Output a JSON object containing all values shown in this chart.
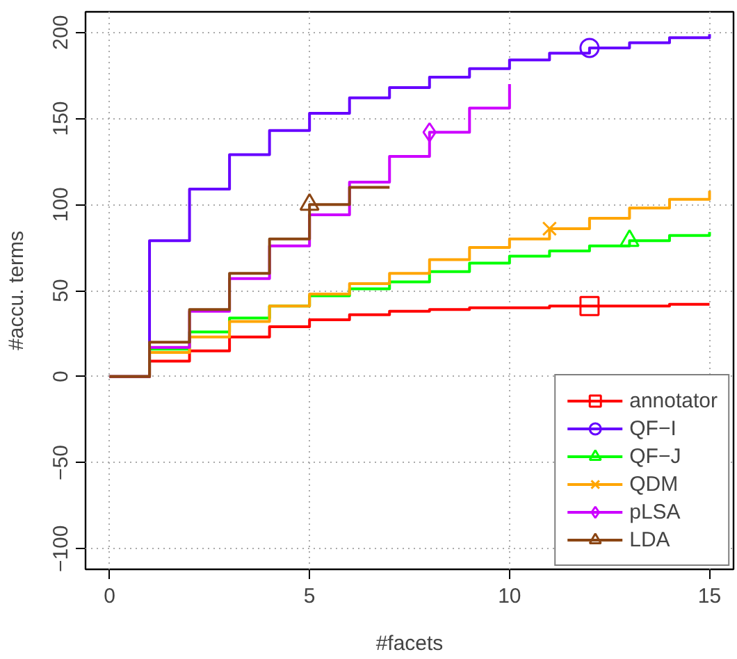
{
  "chart_data": {
    "type": "step",
    "xlabel": "#facets",
    "ylabel": "#accu. terms",
    "x": [
      0,
      1,
      2,
      3,
      4,
      5,
      6,
      7,
      8,
      9,
      10,
      11,
      12,
      13,
      14,
      15
    ],
    "xlim": [
      -0.6,
      15.6
    ],
    "ylim": [
      -112,
      212
    ],
    "xticks": [
      0,
      5,
      10,
      15
    ],
    "yticks": [
      -100,
      -50,
      0,
      50,
      100,
      150,
      200
    ],
    "grid": true,
    "legend": "bottom right",
    "series": [
      {
        "name": "annotator",
        "color": "#ff0000",
        "values": [
          0,
          9,
          15,
          23,
          29,
          33,
          36,
          38,
          39,
          40,
          40,
          41,
          41,
          41,
          42,
          42
        ]
      },
      {
        "type": "scatter",
        "color": "#ff0000",
        "marker": "square",
        "x": [
          12
        ],
        "values": [
          41
        ]
      },
      {
        "name": "QF−I",
        "color": "#6600ff",
        "values": [
          0,
          79,
          109,
          129,
          143,
          153,
          162,
          168,
          174,
          179,
          184,
          188,
          191,
          194,
          197,
          199
        ]
      },
      {
        "type": "scatter",
        "color": "#6600ff",
        "marker": "circle",
        "x": [
          12
        ],
        "values": [
          191
        ]
      },
      {
        "name": "QF−J",
        "color": "#00ff00",
        "values": [
          0,
          16,
          26,
          34,
          41,
          47,
          51,
          55,
          61,
          66,
          70,
          73,
          76,
          79,
          82,
          84
        ]
      },
      {
        "type": "scatter",
        "color": "#00ff00",
        "marker": "triangle",
        "x": [
          13
        ],
        "values": [
          79
        ]
      },
      {
        "name": "QDM",
        "color": "#ffa500",
        "values": [
          0,
          14,
          23,
          32,
          41,
          48,
          54,
          60,
          68,
          75,
          80,
          86,
          92,
          98,
          103,
          108
        ]
      },
      {
        "type": "scatter",
        "color": "#ffa500",
        "marker": "cross",
        "x": [
          11
        ],
        "values": [
          86
        ]
      },
      {
        "name": "pLSA",
        "color": "#cc00ff",
        "x": [
          0,
          1,
          2,
          3,
          4,
          5,
          6,
          7,
          8,
          9,
          10
        ],
        "values": [
          0,
          17,
          38,
          57,
          76,
          94,
          113,
          128,
          142,
          156,
          170
        ]
      },
      {
        "type": "scatter",
        "color": "#cc00ff",
        "marker": "diamond",
        "x": [
          8
        ],
        "values": [
          142
        ]
      },
      {
        "name": "LDA",
        "color": "#8b4513",
        "x": [
          0,
          1,
          2,
          3,
          4,
          5,
          6,
          7
        ],
        "values": [
          0,
          20,
          39,
          60,
          80,
          100,
          110,
          110
        ]
      },
      {
        "type": "scatter",
        "color": "#8b4513",
        "marker": "triangle",
        "x": [
          5
        ],
        "values": [
          100
        ]
      }
    ]
  }
}
